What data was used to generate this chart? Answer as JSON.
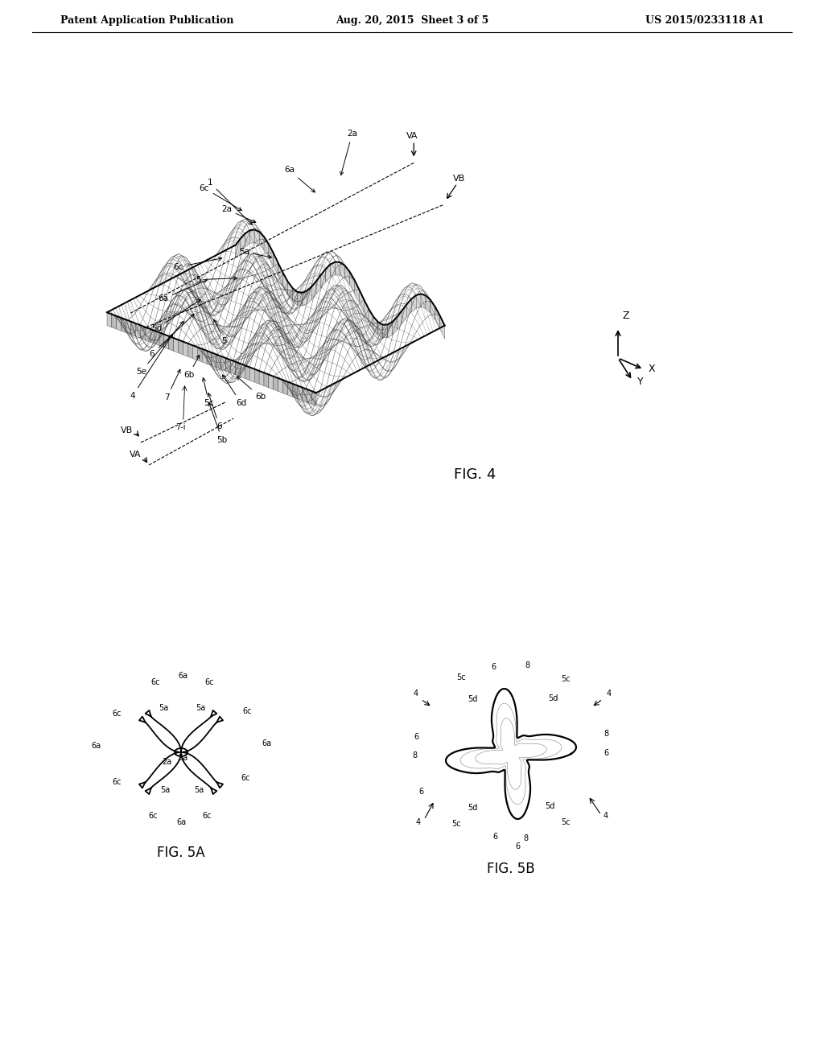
{
  "bg_color": "#ffffff",
  "text_color": "#000000",
  "header_left": "Patent Application Publication",
  "header_center": "Aug. 20, 2015  Sheet 3 of 5",
  "header_right": "US 2015/0233118 A1",
  "fig4_label": "FIG. 4",
  "fig5a_label": "FIG. 5A",
  "fig5b_label": "FIG. 5B"
}
